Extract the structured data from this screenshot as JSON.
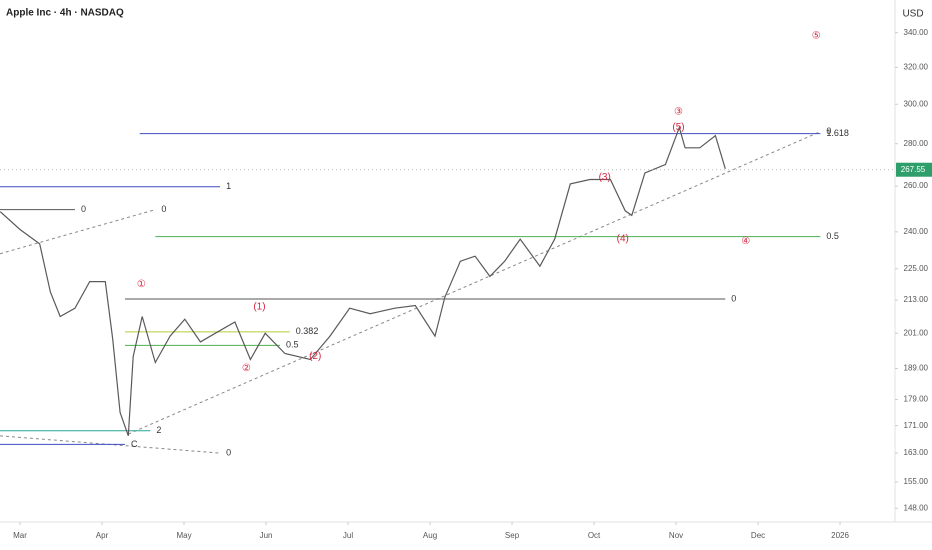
{
  "chart_data": {
    "type": "line",
    "title": "Apple Inc · 4h · NASDAQ",
    "currency": "USD",
    "last_price": 267.55,
    "log_scale": true,
    "color": "#5a5a5a",
    "x": [
      2.76,
      3.0,
      3.24,
      3.37,
      3.49,
      3.67,
      3.85,
      4.04,
      4.13,
      4.22,
      4.32,
      4.38,
      4.49,
      4.65,
      4.83,
      5.01,
      5.2,
      5.38,
      5.62,
      5.81,
      5.99,
      6.23,
      6.54,
      6.78,
      7.02,
      7.27,
      7.57,
      7.82,
      8.06,
      8.18,
      8.37,
      8.55,
      8.73,
      8.91,
      9.1,
      9.34,
      9.52,
      9.71,
      9.95,
      10.2,
      10.38,
      10.46,
      10.62,
      10.87,
      11.04,
      11.11,
      11.29,
      11.48,
      11.6
    ],
    "values": [
      248.6,
      241,
      235,
      216,
      207,
      210,
      220,
      220,
      199,
      175,
      168,
      193,
      207,
      191,
      200,
      206,
      198,
      201,
      205,
      192,
      201,
      194,
      192,
      200,
      210,
      208,
      210,
      211,
      200,
      214,
      228,
      230,
      222,
      228,
      237,
      226,
      237,
      261,
      263,
      263,
      249,
      247,
      266,
      270,
      288,
      278,
      278,
      284,
      268
    ],
    "xlim": [
      2.756,
      13.67
    ],
    "ylim": [
      144.5,
      360
    ],
    "xticks": [
      {
        "value": 3,
        "label": "Mar"
      },
      {
        "value": 4,
        "label": "Apr"
      },
      {
        "value": 5,
        "label": "May"
      },
      {
        "value": 6,
        "label": "Jun"
      },
      {
        "value": 7,
        "label": "Jul"
      },
      {
        "value": 8,
        "label": "Aug"
      },
      {
        "value": 9,
        "label": "Sep"
      },
      {
        "value": 10,
        "label": "Oct"
      },
      {
        "value": 11,
        "label": "Nov"
      },
      {
        "value": 12,
        "label": "Dec"
      },
      {
        "value": 13,
        "label": "2026"
      }
    ],
    "yticks": [
      {
        "value": 148,
        "label": "148.00"
      },
      {
        "value": 155,
        "label": "155.00"
      },
      {
        "value": 163,
        "label": "163.00"
      },
      {
        "value": 171,
        "label": "171.00"
      },
      {
        "value": 179,
        "label": "179.00"
      },
      {
        "value": 189,
        "label": "189.00"
      },
      {
        "value": 201,
        "label": "201.00"
      },
      {
        "value": 213,
        "label": "213.00"
      },
      {
        "value": 225,
        "label": "225.00"
      },
      {
        "value": 240,
        "label": "240.00"
      },
      {
        "value": 260,
        "label": "260.00"
      },
      {
        "value": 280,
        "label": "280.00"
      },
      {
        "value": 300,
        "label": "300.00"
      },
      {
        "value": 320,
        "label": "320.00"
      },
      {
        "value": 340,
        "label": "340.00"
      }
    ],
    "levels": [
      {
        "label": "1.618",
        "price": 285,
        "from": 4.46,
        "to": 12.76,
        "color": "#3f4fc2"
      },
      {
        "label": "1",
        "price": 259.7,
        "from": 2.756,
        "to": 5.44,
        "color": "#3f4fc2"
      },
      {
        "label": "0.5",
        "price": 238,
        "from": 4.65,
        "to": 12.76,
        "color": "#4caf50"
      },
      {
        "label": "0",
        "price": 213.4,
        "from": 4.28,
        "to": 11.6,
        "color": "#555555"
      },
      {
        "label": "0.382",
        "price": 201.5,
        "from": 4.28,
        "to": 6.29,
        "color": "#b5cc3a"
      },
      {
        "label": "0.5",
        "price": 196.8,
        "from": 4.28,
        "to": 6.17,
        "color": "#4caf50"
      },
      {
        "label": "0",
        "price": 249.5,
        "from": 2.756,
        "to": 3.67,
        "color": "#555555"
      },
      {
        "label": "2",
        "price": 169.5,
        "from": 2.756,
        "to": 4.59,
        "color": "#26a69a"
      },
      {
        "label": "C",
        "price": 165.5,
        "from": 2.756,
        "to": 4.28,
        "color": "#3f4fc2"
      }
    ],
    "trendlines": [
      {
        "label": "0",
        "from": [
          4.32,
          168.5
        ],
        "to": [
          12.76,
          286
        ]
      },
      {
        "label": "0",
        "from": [
          2.756,
          231
        ],
        "to": [
          4.65,
          249.5
        ]
      },
      {
        "label": "0",
        "from": [
          2.756,
          168
        ],
        "to": [
          5.44,
          163
        ]
      }
    ],
    "wave_labels": [
      {
        "text": "①",
        "x": 4.48,
        "y": 219
      },
      {
        "text": "②",
        "x": 5.76,
        "y": 189
      },
      {
        "text": "(1)",
        "x": 5.92,
        "y": 210.5
      },
      {
        "text": "(2)",
        "x": 6.6,
        "y": 193
      },
      {
        "text": "(3)",
        "x": 10.13,
        "y": 264
      },
      {
        "text": "(4)",
        "x": 10.35,
        "y": 237
      },
      {
        "text": "③",
        "x": 11.03,
        "y": 296
      },
      {
        "text": "(5)",
        "x": 11.03,
        "y": 288
      },
      {
        "text": "④",
        "x": 11.85,
        "y": 236
      },
      {
        "text": "⑤",
        "x": 12.71,
        "y": 338
      }
    ]
  }
}
